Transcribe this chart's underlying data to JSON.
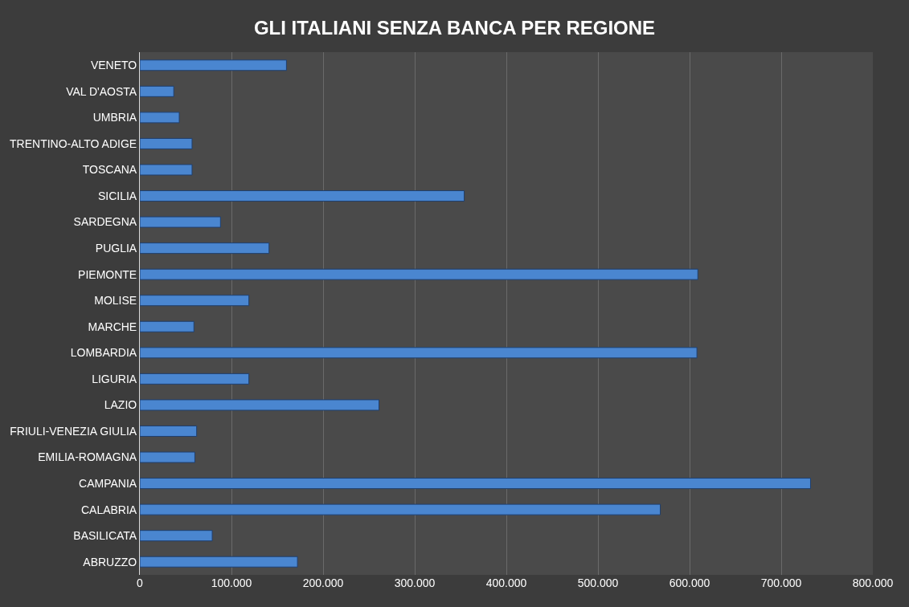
{
  "chart_data": {
    "type": "bar",
    "orientation": "horizontal",
    "title": "GLI ITALIANI SENZA BANCA PER REGIONE",
    "categories": [
      "VENETO",
      "VAL D'AOSTA",
      "UMBRIA",
      "TRENTINO-ALTO ADIGE",
      "TOSCANA",
      "SICILIA",
      "SARDEGNA",
      "PUGLIA",
      "PIEMONTE",
      "MOLISE",
      "MARCHE",
      "LOMBARDIA",
      "LIGURIA",
      "LAZIO",
      "FRIULI-VENEZIA GIULIA",
      "EMILIA-ROMAGNA",
      "CAMPANIA",
      "CALABRIA",
      "BASILICATA",
      "ABRUZZO"
    ],
    "values": [
      160000,
      37000,
      43000,
      57000,
      57000,
      354000,
      88000,
      141000,
      609000,
      119000,
      59000,
      608000,
      119000,
      261000,
      62000,
      60000,
      732000,
      568000,
      79000,
      172000
    ],
    "color": "#4a86d0",
    "xlim": [
      0,
      800000
    ],
    "xticks": [
      {
        "value": 0,
        "label": "0"
      },
      {
        "value": 100000,
        "label": "100.000"
      },
      {
        "value": 200000,
        "label": "200.000"
      },
      {
        "value": 300000,
        "label": "300.000"
      },
      {
        "value": 400000,
        "label": "400.000"
      },
      {
        "value": 500000,
        "label": "500.000"
      },
      {
        "value": 600000,
        "label": "600.000"
      },
      {
        "value": 700000,
        "label": "700.000"
      },
      {
        "value": 800000,
        "label": "800.000"
      }
    ],
    "grid": "x",
    "legend": false
  }
}
